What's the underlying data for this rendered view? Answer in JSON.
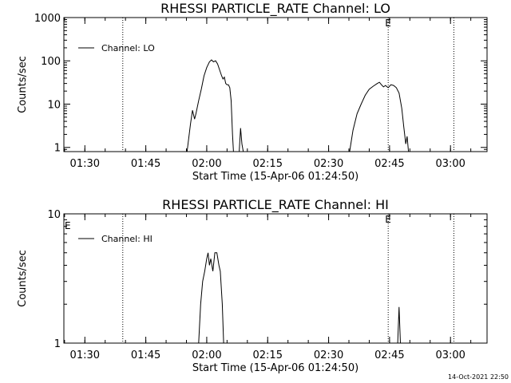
{
  "chart_data": [
    {
      "type": "line",
      "title": "RHESSI PARTICLE_RATE Channel: LO",
      "xlabel": "Start Time (15-Apr-06 01:24:50)",
      "ylabel": "Counts/sec",
      "yscale": "log",
      "ylim": [
        0.8,
        1000
      ],
      "xlim": [
        "01:24:50",
        "03:09:00"
      ],
      "xticks": [
        "01:30",
        "01:45",
        "02:00",
        "02:15",
        "02:30",
        "02:45",
        "03:00"
      ],
      "yticks": [
        "1",
        "10",
        "100",
        "1000"
      ],
      "legend": {
        "position": "top-left",
        "entries": [
          "Channel: LO"
        ]
      },
      "markers": [
        {
          "time": "01:39:20",
          "label": ""
        },
        {
          "time": "02:44:40",
          "label": "E"
        },
        {
          "time": "03:00:50",
          "label": ""
        }
      ],
      "grid": false,
      "series": [
        {
          "name": "Channel: LO",
          "segments": [
            [
              [
                "01:55:10",
                0.8
              ],
              [
                "01:56:00",
                3.5
              ],
              [
                "01:56:30",
                7.2
              ],
              [
                "01:57:00",
                4.5
              ],
              [
                "01:57:20",
                6.0
              ],
              [
                "01:58:00",
                12
              ],
              [
                "01:58:40",
                22
              ],
              [
                "01:59:20",
                45
              ],
              [
                "02:00:00",
                70
              ],
              [
                "02:00:40",
                95
              ],
              [
                "02:01:10",
                105
              ],
              [
                "02:01:40",
                95
              ],
              [
                "02:02:10",
                100
              ],
              [
                "02:02:40",
                85
              ],
              [
                "02:03:10",
                62
              ],
              [
                "02:03:40",
                45
              ],
              [
                "02:04:00",
                38
              ],
              [
                "02:04:20",
                42
              ],
              [
                "02:04:40",
                30
              ],
              [
                "02:05:00",
                28
              ],
              [
                "02:05:20",
                28
              ],
              [
                "02:05:40",
                24
              ],
              [
                "02:06:00",
                12
              ],
              [
                "02:06:20",
                2
              ],
              [
                "02:06:35",
                0.8
              ]
            ],
            [
              [
                "02:08:00",
                0.8
              ],
              [
                "02:08:20",
                2.8
              ],
              [
                "02:08:40",
                1.2
              ],
              [
                "02:09:00",
                0.8
              ]
            ],
            [
              [
                "02:35:10",
                0.8
              ],
              [
                "02:36:00",
                2.5
              ],
              [
                "02:37:00",
                6.0
              ],
              [
                "02:38:00",
                10
              ],
              [
                "02:39:00",
                16
              ],
              [
                "02:40:00",
                22
              ],
              [
                "02:41:00",
                26
              ],
              [
                "02:42:00",
                30
              ],
              [
                "02:42:30",
                32
              ],
              [
                "02:43:00",
                28
              ],
              [
                "02:43:30",
                25
              ],
              [
                "02:44:00",
                27
              ],
              [
                "02:44:40",
                24
              ],
              [
                "02:45:20",
                28
              ],
              [
                "02:46:00",
                27
              ],
              [
                "02:46:40",
                24
              ],
              [
                "02:47:20",
                18
              ],
              [
                "02:48:00",
                8
              ],
              [
                "02:48:30",
                3
              ],
              [
                "02:49:00",
                1.2
              ],
              [
                "02:49:20",
                1.8
              ],
              [
                "02:49:40",
                0.8
              ]
            ]
          ]
        }
      ]
    },
    {
      "type": "line",
      "title": "RHESSI PARTICLE_RATE Channel: HI",
      "xlabel": "Start Time (15-Apr-06 01:24:50)",
      "ylabel": "Counts/sec",
      "yscale": "log",
      "ylim": [
        1,
        10
      ],
      "xlim": [
        "01:24:50",
        "03:09:00"
      ],
      "xticks": [
        "01:30",
        "01:45",
        "02:00",
        "02:15",
        "02:30",
        "02:45",
        "03:00"
      ],
      "yticks": [
        "1",
        "10"
      ],
      "legend": {
        "position": "top-left",
        "entries": [
          "Channel: HI"
        ]
      },
      "markers": [
        {
          "time": "01:39:20",
          "label": ""
        },
        {
          "time": "02:44:40",
          "label": "E"
        },
        {
          "time": "03:00:50",
          "label": ""
        }
      ],
      "corner_label": "E",
      "grid": false,
      "series": [
        {
          "name": "Channel: HI",
          "segments": [
            [
              [
                "01:58:00",
                1.0
              ],
              [
                "01:58:30",
                2.0
              ],
              [
                "01:59:00",
                3.0
              ],
              [
                "01:59:30",
                3.6
              ],
              [
                "02:00:00",
                4.5
              ],
              [
                "02:00:20",
                5.0
              ],
              [
                "02:00:40",
                4.0
              ],
              [
                "02:01:00",
                4.5
              ],
              [
                "02:01:30",
                3.6
              ],
              [
                "02:02:00",
                5.0
              ],
              [
                "02:02:30",
                5.0
              ],
              [
                "02:03:00",
                4.0
              ],
              [
                "02:03:20",
                3.6
              ],
              [
                "02:03:50",
                2.0
              ],
              [
                "02:04:10",
                1.0
              ]
            ],
            [
              [
                "02:47:00",
                1.0
              ],
              [
                "02:47:20",
                1.9
              ],
              [
                "02:47:40",
                1.0
              ]
            ]
          ]
        }
      ]
    }
  ],
  "footer": {
    "timestamp": "14-Oct-2021 22:50"
  }
}
